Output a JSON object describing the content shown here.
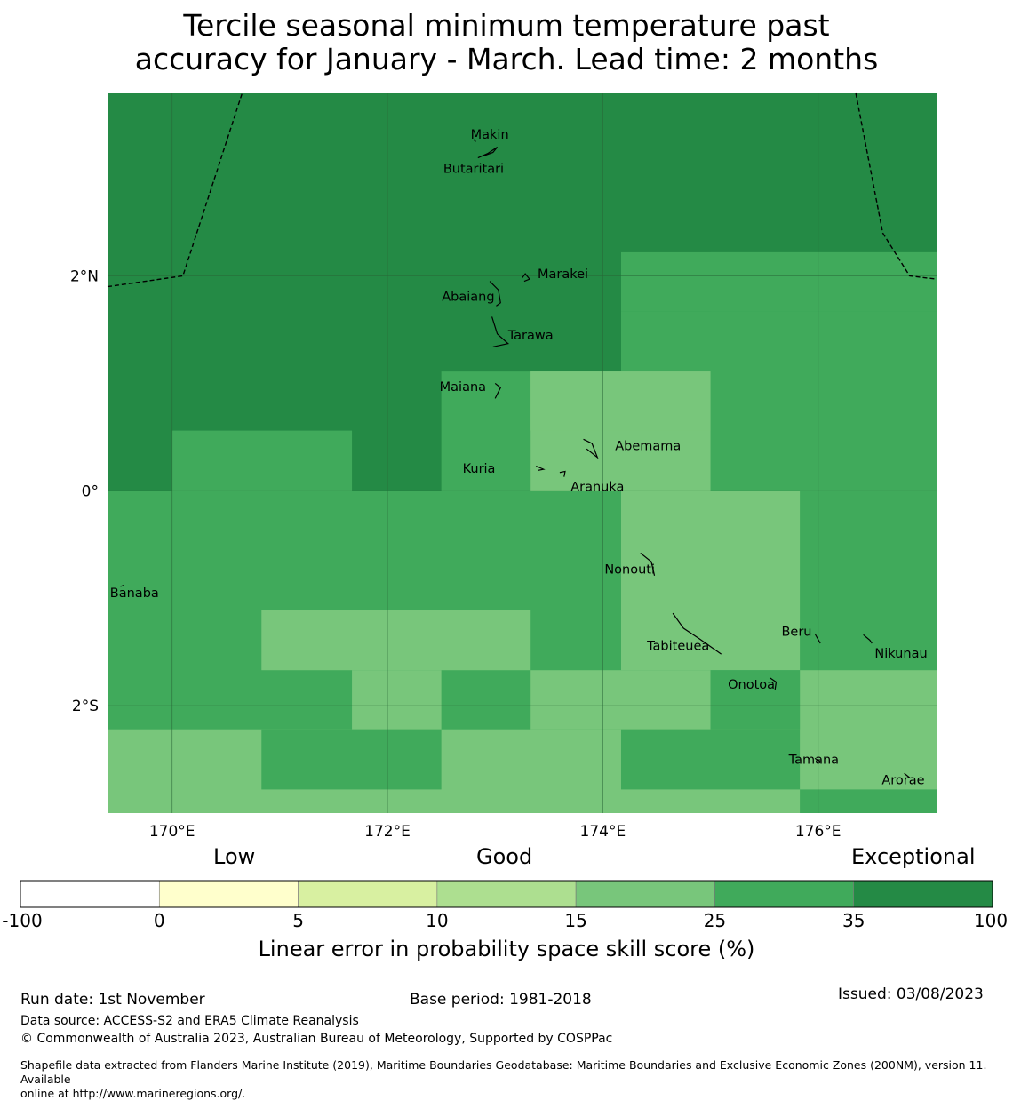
{
  "title_line1": "Tercile seasonal minimum temperature past",
  "title_line2": "accuracy for January - March. Lead time: 2 months",
  "colors": {
    "exceptional": "#248a45",
    "good_high": "#40aa5b",
    "good_mid": "#78c67b",
    "good_low": "#addf90",
    "low_mid": "#d8f0a1",
    "low": "#ffffcc",
    "none": "#ffffff",
    "coast": "#000000",
    "grid": "#2a6638"
  },
  "map": {
    "lon_range": [
      169.4,
      177.1
    ],
    "lat_range": [
      -3.0,
      3.7
    ],
    "lon_ticks": [
      {
        "value": 170,
        "label": "170°E"
      },
      {
        "value": 172,
        "label": "172°E"
      },
      {
        "value": 174,
        "label": "174°E"
      },
      {
        "value": 176,
        "label": "176°E"
      }
    ],
    "lat_ticks": [
      {
        "value": 2,
        "label": "2°N"
      },
      {
        "value": 0,
        "label": "0°"
      },
      {
        "value": -2,
        "label": "2°S"
      }
    ],
    "skill_cells": [
      {
        "lon": [
          169.4,
          177.1
        ],
        "lat": [
          -3.0,
          3.7
        ],
        "class": "exceptional"
      },
      {
        "lon": [
          174.17,
          177.1
        ],
        "lat": [
          1.67,
          2.22
        ],
        "class": "good_high"
      },
      {
        "lon": [
          175.0,
          177.1
        ],
        "lat": [
          2.22,
          2.22
        ],
        "class": "good_high"
      },
      {
        "lon": [
          175.0,
          177.1
        ],
        "lat": [
          1.67,
          2.22
        ],
        "class": "good_high"
      },
      {
        "lon": [
          174.17,
          177.1
        ],
        "lat": [
          0.0,
          1.67
        ],
        "class": "good_high"
      },
      {
        "lon": [
          172.5,
          174.17
        ],
        "lat": [
          0.0,
          1.11
        ],
        "class": "good_high"
      },
      {
        "lon": [
          170.0,
          171.67
        ],
        "lat": [
          0.0,
          0.56
        ],
        "class": "good_high"
      },
      {
        "lon": [
          169.4,
          177.1
        ],
        "lat": [
          -2.25,
          0.0
        ],
        "class": "good_high"
      },
      {
        "lon": [
          173.33,
          175.0
        ],
        "lat": [
          0.0,
          1.11
        ],
        "class": "good_mid"
      },
      {
        "lon": [
          173.33,
          175.0
        ],
        "lat": [
          0.56,
          1.11
        ],
        "class": "good_mid"
      },
      {
        "lon": [
          174.17,
          175.83
        ],
        "lat": [
          -1.67,
          0.0
        ],
        "class": "good_mid"
      },
      {
        "lon": [
          170.83,
          173.33
        ],
        "lat": [
          -1.67,
          -1.11
        ],
        "class": "good_mid"
      },
      {
        "lon": [
          171.67,
          172.5
        ],
        "lat": [
          -2.22,
          -1.67
        ],
        "class": "good_mid"
      },
      {
        "lon": [
          173.33,
          175.0
        ],
        "lat": [
          -2.22,
          -1.67
        ],
        "class": "good_mid"
      },
      {
        "lon": [
          169.4,
          177.1
        ],
        "lat": [
          -3.0,
          -2.22
        ],
        "class": "good_mid"
      },
      {
        "lon": [
          175.83,
          177.1
        ],
        "lat": [
          -2.78,
          -1.67
        ],
        "class": "good_mid"
      },
      {
        "lon": [
          170.83,
          172.5
        ],
        "lat": [
          -2.78,
          -2.22
        ],
        "class": "good_high"
      },
      {
        "lon": [
          174.17,
          175.83
        ],
        "lat": [
          -2.78,
          -2.22
        ],
        "class": "good_high"
      },
      {
        "lon": [
          175.0,
          175.83
        ],
        "lat": [
          -2.22,
          -1.67
        ],
        "class": "good_high"
      },
      {
        "lon": [
          175.83,
          177.1
        ],
        "lat": [
          -3.0,
          -2.78
        ],
        "class": "good_high"
      }
    ],
    "eez_lines": [
      [
        [
          169.4,
          1.9
        ],
        [
          170.1,
          2.0
        ],
        [
          170.65,
          3.7
        ]
      ],
      [
        [
          176.35,
          3.7
        ],
        [
          176.6,
          2.4
        ],
        [
          176.85,
          2.0
        ],
        [
          177.1,
          1.97
        ]
      ]
    ],
    "islands": [
      {
        "name": "Makin",
        "label_lon": 172.95,
        "label_lat": 3.32,
        "shape": [
          [
            172.8,
            3.27
          ],
          [
            172.82,
            3.25
          ]
        ]
      },
      {
        "name": "Butaritari",
        "label_lon": 172.8,
        "label_lat": 3.0,
        "shape": [
          [
            172.84,
            3.1
          ],
          [
            172.93,
            3.14
          ],
          [
            173.02,
            3.2
          ],
          [
            172.98,
            3.15
          ],
          [
            172.9,
            3.12
          ]
        ]
      },
      {
        "name": "Marakei",
        "label_lon": 173.63,
        "label_lat": 2.02,
        "shape": [
          [
            173.25,
            1.98
          ],
          [
            173.28,
            2.02
          ],
          [
            173.32,
            1.97
          ],
          [
            173.27,
            1.95
          ]
        ]
      },
      {
        "name": "Abaiang",
        "label_lon": 172.75,
        "label_lat": 1.81,
        "shape": [
          [
            172.95,
            1.95
          ],
          [
            173.03,
            1.87
          ],
          [
            173.05,
            1.75
          ],
          [
            173.01,
            1.72
          ]
        ]
      },
      {
        "name": "Tarawa",
        "label_lon": 173.33,
        "label_lat": 1.45,
        "shape": [
          [
            172.97,
            1.62
          ],
          [
            173.02,
            1.46
          ],
          [
            173.12,
            1.37
          ],
          [
            172.98,
            1.34
          ]
        ]
      },
      {
        "name": "Maiana",
        "label_lon": 172.7,
        "label_lat": 0.97,
        "shape": [
          [
            173.0,
            1.0
          ],
          [
            173.05,
            0.96
          ],
          [
            173.0,
            0.86
          ]
        ]
      },
      {
        "name": "Abemama",
        "label_lon": 174.42,
        "label_lat": 0.42,
        "shape": [
          [
            173.82,
            0.48
          ],
          [
            173.9,
            0.44
          ],
          [
            173.95,
            0.31
          ],
          [
            173.85,
            0.39
          ]
        ]
      },
      {
        "name": "Kuria",
        "label_lon": 172.85,
        "label_lat": 0.21,
        "shape": [
          [
            173.38,
            0.23
          ],
          [
            173.45,
            0.2
          ],
          [
            173.4,
            0.19
          ]
        ]
      },
      {
        "name": "Aranuka",
        "label_lon": 173.95,
        "label_lat": 0.04,
        "shape": [
          [
            173.6,
            0.17
          ],
          [
            173.65,
            0.18
          ],
          [
            173.64,
            0.13
          ]
        ]
      },
      {
        "name": "Nonouti",
        "label_lon": 174.25,
        "label_lat": -0.73,
        "shape": [
          [
            174.35,
            -0.58
          ],
          [
            174.45,
            -0.66
          ],
          [
            174.48,
            -0.79
          ]
        ]
      },
      {
        "name": "Banaba",
        "label_lon": 169.65,
        "label_lat": -0.95,
        "shape": [
          [
            169.52,
            -0.89
          ],
          [
            169.55,
            -0.88
          ]
        ]
      },
      {
        "name": "Tabiteuea",
        "label_lon": 174.7,
        "label_lat": -1.44,
        "shape": [
          [
            174.65,
            -1.14
          ],
          [
            174.75,
            -1.28
          ],
          [
            174.9,
            -1.38
          ],
          [
            175.1,
            -1.52
          ]
        ]
      },
      {
        "name": "Beru",
        "label_lon": 175.8,
        "label_lat": -1.31,
        "shape": [
          [
            175.97,
            -1.33
          ],
          [
            176.02,
            -1.42
          ]
        ]
      },
      {
        "name": "Nikunau",
        "label_lon": 176.77,
        "label_lat": -1.51,
        "shape": [
          [
            176.42,
            -1.34
          ],
          [
            176.48,
            -1.39
          ],
          [
            176.5,
            -1.42
          ]
        ]
      },
      {
        "name": "Onotoa",
        "label_lon": 175.38,
        "label_lat": -1.8,
        "shape": [
          [
            175.55,
            -1.74
          ],
          [
            175.61,
            -1.78
          ],
          [
            175.6,
            -1.85
          ]
        ]
      },
      {
        "name": "Tamana",
        "label_lon": 175.96,
        "label_lat": -2.5,
        "shape": [
          [
            175.97,
            -2.49
          ],
          [
            176.02,
            -2.52
          ]
        ]
      },
      {
        "name": "Arorae",
        "label_lon": 176.79,
        "label_lat": -2.69,
        "shape": [
          [
            176.8,
            -2.63
          ],
          [
            176.85,
            -2.67
          ]
        ]
      }
    ]
  },
  "colorbar": {
    "label_low": "Low",
    "label_good": "Good",
    "label_exceptional": "Exceptional",
    "ticks": [
      "-100",
      "0",
      "5",
      "10",
      "15",
      "25",
      "35",
      "100"
    ],
    "segments": [
      "none",
      "low",
      "low_mid",
      "good_low",
      "good_mid",
      "good_high",
      "exceptional"
    ],
    "axis_label": "Linear error in probability space skill score (%)"
  },
  "footer": {
    "run_date": "Run date: 1st November",
    "base_period": "Base period: 1981-2018",
    "issued": "Issued: 03/08/2023",
    "data_source": "Data source: ACCESS-S2 and ERA5 Climate Reanalysis",
    "copyright": "© Commonwealth of Australia 2023, Australian Bureau of Meteorology, Supported by COSPPac",
    "shapefile_line1": "Shapefile data extracted from Flanders Marine Institute (2019), Maritime Boundaries Geodatabase: Maritime Boundaries and Exclusive Economic Zones (200NM), version 11. Available",
    "shapefile_line2": "online at http://www.marineregions.org/."
  }
}
